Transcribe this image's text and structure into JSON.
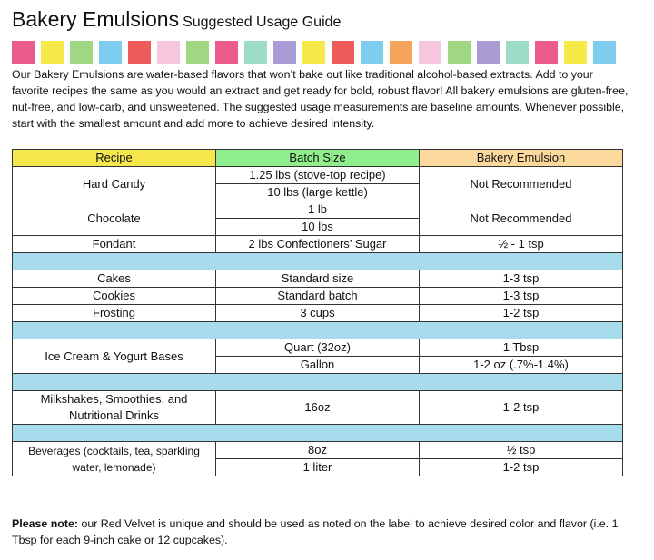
{
  "header": {
    "title": "Bakery Emulsions",
    "subtitle": "Suggested Usage Guide"
  },
  "intro": "Our Bakery Emulsions are water-based flavors that won’t bake out like traditional alcohol-based extracts. Add to your favorite recipes the same as you would an extract and get ready for bold, robust flavor! All bakery emulsions are gluten-free, nut-free, and low-carb, and unsweetened. The suggested usage measurements are baseline amounts. Whenever possible, start with the smallest amount and add more to achieve desired intensity.",
  "table": {
    "columns": [
      "Recipe",
      "Batch Size",
      "Bakery Emulsion"
    ],
    "sections": [
      [
        {
          "recipe": "Hard Candy",
          "batch": [
            "1.25 lbs (stove-top recipe)",
            "10 lbs (large kettle)"
          ],
          "emulsion": "Not Recommended"
        },
        {
          "recipe": "Chocolate",
          "batch": [
            "1 lb",
            "10 lbs"
          ],
          "emulsion": "Not Recommended"
        },
        {
          "recipe": "Fondant",
          "batch": [
            "2 lbs Confectioners’ Sugar"
          ],
          "emulsion": "½ - 1 tsp"
        }
      ],
      [
        {
          "recipe": "Cakes",
          "batch": [
            "Standard size"
          ],
          "emulsion": "1-3 tsp"
        },
        {
          "recipe": "Cookies",
          "batch": [
            "Standard batch"
          ],
          "emulsion": "1-3 tsp"
        },
        {
          "recipe": "Frosting",
          "batch": [
            "3 cups"
          ],
          "emulsion": "1-2 tsp"
        }
      ],
      [
        {
          "recipe": "Ice Cream & Yogurt Bases",
          "batch": [
            "Quart (32oz)",
            "Gallon"
          ],
          "emulsion": [
            "1 Tbsp",
            "1-2 oz (.7%-1.4%)"
          ]
        }
      ],
      [
        {
          "recipe": "Milkshakes, Smoothies, and Nutritional Drinks",
          "batch": [
            "16oz"
          ],
          "emulsion": "1-2 tsp"
        }
      ],
      [
        {
          "recipe": "Beverages (cocktails, tea, sparkling water, lemonade)",
          "batch": [
            "8oz",
            "1 liter"
          ],
          "emulsion": [
            "½ tsp",
            "1-2 tsp"
          ]
        }
      ]
    ]
  },
  "note": {
    "label": "Please note:",
    "text": " our Red Velvet is unique and should be used as noted on the label to achieve desired color and flavor (i.e. 1 Tbsp for each 9-inch cake or 12 cupcakes)."
  }
}
